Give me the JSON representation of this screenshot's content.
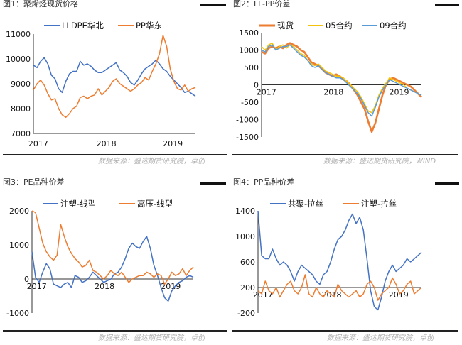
{
  "panels": [
    {
      "title": "图1：聚烯烃现货价格",
      "chart_data": {
        "type": "line",
        "title": "",
        "xlabel": "",
        "ylabel": "",
        "x_ticks": [
          "2017",
          "2018",
          "2019"
        ],
        "y_ticks": [
          7000,
          8000,
          9000,
          10000,
          11000
        ],
        "ylim": [
          7000,
          11000
        ],
        "legend_position": "top",
        "grid": false,
        "series": [
          {
            "name": "LLDPE华北",
            "color": "#4472c4",
            "values": [
              9750,
              9650,
              9900,
              10050,
              9800,
              9350,
              9200,
              8800,
              8650,
              9100,
              9400,
              9500,
              9500,
              9900,
              9750,
              9800,
              9700,
              9550,
              9450,
              9450,
              9550,
              9650,
              9750,
              9850,
              9550,
              9450,
              9300,
              9050,
              8950,
              9150,
              9400,
              9600,
              9700,
              9800,
              9950,
              9800,
              9600,
              9500,
              9300,
              9150,
              9000,
              8850,
              8650,
              8700,
              8600,
              8500
            ]
          },
          {
            "name": "PP华东",
            "color": "#ed7d31",
            "values": [
              8750,
              9000,
              9150,
              8950,
              8600,
              8350,
              8400,
              8000,
              7750,
              7650,
              7800,
              8000,
              8100,
              8450,
              8500,
              8400,
              8500,
              8550,
              8800,
              8550,
              8700,
              8850,
              9100,
              9200,
              9000,
              8900,
              8800,
              8700,
              8800,
              8950,
              9050,
              9250,
              9150,
              9500,
              9800,
              10200,
              10950,
              10500,
              9600,
              9100,
              8800,
              8750,
              8950,
              8700,
              8800,
              8850
            ]
          }
        ]
      },
      "source": "数据来源：盛达期货研究院，卓创"
    },
    {
      "title": "图2：LL-PP价差",
      "chart_data": {
        "type": "line",
        "title": "",
        "xlabel": "",
        "ylabel": "",
        "x_ticks": [
          "2017",
          "2018",
          "2019"
        ],
        "y_ticks": [
          -1500,
          -1000,
          -500,
          0,
          500,
          1000,
          1500
        ],
        "ylim": [
          -1500,
          1500
        ],
        "legend_position": "top",
        "grid": false,
        "series": [
          {
            "name": "现货",
            "color": "#ed7d31",
            "values": [
              950,
              900,
              1050,
              1100,
              1050,
              1100,
              1050,
              1150,
              1200,
              1150,
              1100,
              1000,
              950,
              800,
              650,
              600,
              550,
              450,
              350,
              300,
              250,
              300,
              250,
              150,
              100,
              0,
              -150,
              -300,
              -500,
              -700,
              -1050,
              -1350,
              -1100,
              -700,
              -300,
              0,
              150,
              200,
              150,
              100,
              50,
              0,
              -50,
              -150,
              -250,
              -350
            ]
          },
          {
            "name": "05合约",
            "color": "#f5c40a",
            "values": [
              1100,
              1000,
              1150,
              1200,
              1000,
              1100,
              1150,
              1050,
              1150,
              1100,
              1000,
              900,
              850,
              700,
              600,
              550,
              600,
              500,
              400,
              350,
              300,
              250,
              250,
              200,
              100,
              0,
              -100,
              -200,
              -350,
              -550,
              -750,
              -800,
              -600,
              -300,
              -100,
              50,
              200,
              150,
              100,
              50,
              0,
              -100,
              -150,
              -200,
              -250,
              -300
            ]
          },
          {
            "name": "09合约",
            "color": "#5b9bd5",
            "values": [
              1000,
              950,
              1100,
              1150,
              1000,
              1050,
              1100,
              1100,
              1150,
              1050,
              950,
              850,
              800,
              700,
              550,
              500,
              550,
              450,
              350,
              300,
              250,
              200,
              200,
              150,
              50,
              -50,
              -150,
              -250,
              -400,
              -600,
              -800,
              -900,
              -650,
              -350,
              -150,
              0,
              150,
              100,
              50,
              0,
              -50,
              -100,
              -150,
              -200,
              -250,
              -300
            ]
          }
        ]
      },
      "source": "数据来源：盛达期货研究院，WIND"
    },
    {
      "title": "图3：PE品种价差",
      "chart_data": {
        "type": "line",
        "title": "",
        "xlabel": "",
        "ylabel": "",
        "x_ticks": [
          "2017",
          "2018",
          "2019"
        ],
        "y_ticks": [
          -1000,
          0,
          1000,
          2000
        ],
        "ylim": [
          -1000,
          2000
        ],
        "legend_position": "top",
        "grid": false,
        "series": [
          {
            "name": "注塑-线型",
            "color": "#4472c4",
            "values": [
              800,
              50,
              -100,
              200,
              450,
              300,
              -150,
              -200,
              -250,
              -150,
              -100,
              -250,
              100,
              50,
              -100,
              -50,
              50,
              200,
              100,
              0,
              -100,
              -50,
              0,
              150,
              200,
              350,
              600,
              900,
              1050,
              950,
              900,
              1100,
              1250,
              900,
              400,
              100,
              -250,
              -550,
              -650,
              -350,
              -200,
              -100,
              -50,
              50,
              100,
              50
            ]
          },
          {
            "name": "高压-线型",
            "color": "#ed7d31",
            "values": [
              2000,
              1950,
              1500,
              1050,
              800,
              650,
              550,
              700,
              1600,
              1250,
              950,
              750,
              600,
              500,
              350,
              400,
              550,
              250,
              200,
              100,
              0,
              100,
              250,
              150,
              100,
              200,
              50,
              -100,
              0,
              50,
              100,
              100,
              200,
              150,
              50,
              150,
              100,
              -150,
              0,
              200,
              100,
              150,
              300,
              100,
              250,
              350
            ]
          }
        ]
      },
      "source": "数据来源：盛达期货研究院，卓创"
    },
    {
      "title": "图4：PP品种价差",
      "chart_data": {
        "type": "line",
        "title": "",
        "xlabel": "",
        "ylabel": "",
        "x_ticks": [
          "2017",
          "2018",
          "2019"
        ],
        "y_ticks": [
          -200,
          200,
          600,
          1000,
          1400
        ],
        "ylim": [
          -200,
          1400
        ],
        "legend_position": "top",
        "grid": false,
        "series": [
          {
            "name": "共聚-拉丝",
            "color": "#4472c4",
            "values": [
              1400,
              700,
              650,
              650,
              800,
              650,
              550,
              600,
              550,
              450,
              300,
              450,
              550,
              500,
              450,
              400,
              300,
              250,
              400,
              450,
              600,
              800,
              950,
              1000,
              1100,
              1250,
              1350,
              1200,
              1300,
              1100,
              650,
              150,
              -100,
              -150,
              50,
              300,
              450,
              550,
              450,
              500,
              550,
              650,
              600,
              650,
              700,
              750
            ]
          },
          {
            "name": "注塑-拉丝",
            "color": "#ed7d31",
            "values": [
              150,
              100,
              300,
              150,
              100,
              200,
              50,
              150,
              250,
              300,
              150,
              100,
              200,
              400,
              100,
              50,
              200,
              100,
              50,
              150,
              100,
              50,
              250,
              150,
              100,
              50,
              100,
              150,
              50,
              100,
              250,
              300,
              200,
              0,
              100,
              150,
              200,
              350,
              250,
              100,
              150,
              250,
              300,
              100,
              150,
              200
            ]
          }
        ]
      },
      "source": "数据来源：盛达期货研究院，卓创"
    }
  ]
}
